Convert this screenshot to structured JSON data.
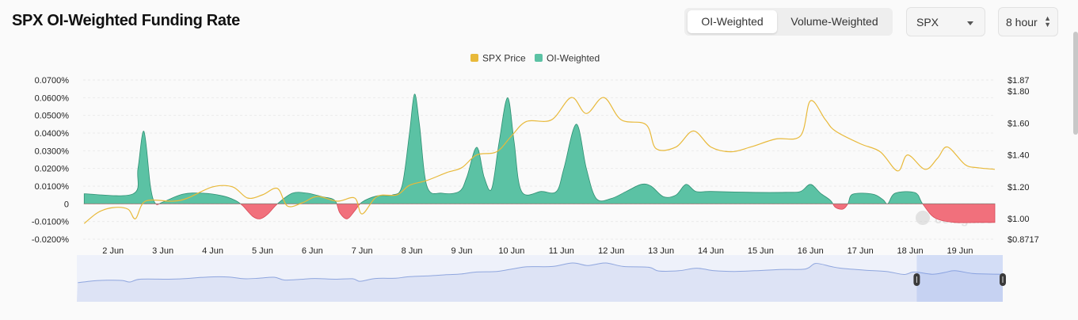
{
  "header": {
    "title": "SPX OI-Weighted Funding Rate",
    "tabs": [
      {
        "label": "OI-Weighted",
        "active": true
      },
      {
        "label": "Volume-Weighted",
        "active": false
      }
    ],
    "symbol_select": "SPX",
    "interval_select": "8 hour"
  },
  "colors": {
    "price": "#e8b93a",
    "positive": "#5bc2a4",
    "negative": "#f1707c",
    "navigator": "#8fa6de"
  },
  "chart_data": {
    "type": "area",
    "legend": [
      "SPX Price",
      "OI-Weighted"
    ],
    "x_tick_labels": [
      "2 Jun",
      "3 Jun",
      "4 Jun",
      "5 Jun",
      "6 Jun",
      "7 Jun",
      "8 Jun",
      "9 Jun",
      "10 Jun",
      "11 Jun",
      "12 Jun",
      "13 Jun",
      "14 Jun",
      "15 Jun",
      "16 Jun",
      "17 Jun",
      "18 Jun",
      "19 Jun"
    ],
    "x_range": [
      1.4,
      19.7
    ],
    "left_axis": {
      "ticks": [
        "0.0700%",
        "0.0600%",
        "0.0500%",
        "0.0400%",
        "0.0300%",
        "0.0200%",
        "0.0100%",
        "0",
        "-0.0100%",
        "-0.0200%"
      ],
      "ylim": [
        -0.02,
        0.07
      ]
    },
    "right_axis": {
      "ticks": [
        "$1.87",
        "$1.80",
        "$1.60",
        "$1.40",
        "$1.20",
        "$1.00",
        "$0.8717"
      ],
      "ylim": [
        0.8717,
        1.87
      ]
    },
    "series": [
      {
        "name": "OI-Weighted",
        "unit": "%",
        "points": [
          [
            1.42,
            0.0057
          ],
          [
            2.4,
            0.0056
          ],
          [
            2.5,
            0.02
          ],
          [
            2.62,
            0.041
          ],
          [
            2.75,
            0.01
          ],
          [
            2.85,
            0.0002
          ],
          [
            3.0,
            0.001
          ],
          [
            3.4,
            0.0055
          ],
          [
            3.8,
            0.006
          ],
          [
            4.2,
            0.0045
          ],
          [
            4.45,
            0.002
          ],
          [
            4.6,
            -0.001
          ],
          [
            4.8,
            -0.007
          ],
          [
            4.95,
            -0.0085
          ],
          [
            5.1,
            -0.006
          ],
          [
            5.3,
            0.0
          ],
          [
            5.6,
            0.006
          ],
          [
            5.9,
            0.006
          ],
          [
            6.2,
            0.004
          ],
          [
            6.45,
            0.002
          ],
          [
            6.55,
            -0.005
          ],
          [
            6.7,
            -0.0085
          ],
          [
            6.85,
            -0.004
          ],
          [
            7.0,
            0.001
          ],
          [
            7.3,
            0.0045
          ],
          [
            7.6,
            0.005
          ],
          [
            7.8,
            0.01
          ],
          [
            7.95,
            0.04
          ],
          [
            8.05,
            0.062
          ],
          [
            8.15,
            0.045
          ],
          [
            8.3,
            0.01
          ],
          [
            8.6,
            0.006
          ],
          [
            8.95,
            0.007
          ],
          [
            9.1,
            0.015
          ],
          [
            9.3,
            0.032
          ],
          [
            9.45,
            0.015
          ],
          [
            9.6,
            0.0085
          ],
          [
            9.75,
            0.035
          ],
          [
            9.92,
            0.06
          ],
          [
            10.05,
            0.035
          ],
          [
            10.2,
            0.007
          ],
          [
            10.6,
            0.007
          ],
          [
            10.9,
            0.007
          ],
          [
            11.05,
            0.02
          ],
          [
            11.3,
            0.045
          ],
          [
            11.5,
            0.02
          ],
          [
            11.7,
            0.003
          ],
          [
            12.0,
            0.003
          ],
          [
            12.3,
            0.007
          ],
          [
            12.6,
            0.011
          ],
          [
            12.8,
            0.01
          ],
          [
            13.05,
            0.004
          ],
          [
            13.3,
            0.005
          ],
          [
            13.5,
            0.011
          ],
          [
            13.7,
            0.007
          ],
          [
            14.0,
            0.007
          ],
          [
            14.8,
            0.0065
          ],
          [
            15.5,
            0.0065
          ],
          [
            15.8,
            0.007
          ],
          [
            16.0,
            0.011
          ],
          [
            16.2,
            0.006
          ],
          [
            16.4,
            0.002
          ],
          [
            16.5,
            -0.002
          ],
          [
            16.65,
            -0.003
          ],
          [
            16.75,
            0.0
          ],
          [
            16.85,
            0.0055
          ],
          [
            17.25,
            0.0055
          ],
          [
            17.45,
            0.0025
          ],
          [
            17.55,
            0.0
          ],
          [
            17.7,
            0.006
          ],
          [
            18.1,
            0.0063
          ],
          [
            18.25,
            0.0
          ],
          [
            18.5,
            -0.008
          ],
          [
            18.9,
            -0.0105
          ],
          [
            19.35,
            -0.0105
          ],
          [
            19.7,
            -0.0105
          ]
        ]
      },
      {
        "name": "SPX Price",
        "unit": "$",
        "points": [
          [
            1.42,
            0.97
          ],
          [
            1.7,
            1.04
          ],
          [
            2.0,
            1.07
          ],
          [
            2.3,
            1.06
          ],
          [
            2.45,
            1.0
          ],
          [
            2.65,
            1.11
          ],
          [
            3.2,
            1.11
          ],
          [
            3.5,
            1.13
          ],
          [
            4.0,
            1.2
          ],
          [
            4.4,
            1.2
          ],
          [
            4.7,
            1.13
          ],
          [
            5.0,
            1.15
          ],
          [
            5.3,
            1.19
          ],
          [
            5.5,
            1.08
          ],
          [
            5.8,
            1.1
          ],
          [
            6.1,
            1.14
          ],
          [
            6.5,
            1.11
          ],
          [
            6.85,
            1.13
          ],
          [
            7.0,
            1.03
          ],
          [
            7.3,
            1.14
          ],
          [
            7.7,
            1.15
          ],
          [
            7.95,
            1.21
          ],
          [
            8.3,
            1.24
          ],
          [
            8.7,
            1.29
          ],
          [
            9.0,
            1.32
          ],
          [
            9.3,
            1.4
          ],
          [
            9.7,
            1.42
          ],
          [
            10.0,
            1.52
          ],
          [
            10.3,
            1.61
          ],
          [
            10.8,
            1.62
          ],
          [
            11.2,
            1.76
          ],
          [
            11.5,
            1.66
          ],
          [
            11.85,
            1.76
          ],
          [
            12.2,
            1.62
          ],
          [
            12.7,
            1.59
          ],
          [
            12.9,
            1.44
          ],
          [
            13.3,
            1.45
          ],
          [
            13.65,
            1.55
          ],
          [
            14.0,
            1.45
          ],
          [
            14.4,
            1.42
          ],
          [
            14.8,
            1.45
          ],
          [
            15.3,
            1.5
          ],
          [
            15.8,
            1.52
          ],
          [
            16.0,
            1.74
          ],
          [
            16.3,
            1.62
          ],
          [
            16.5,
            1.55
          ],
          [
            17.0,
            1.47
          ],
          [
            17.4,
            1.42
          ],
          [
            17.75,
            1.3
          ],
          [
            17.95,
            1.4
          ],
          [
            18.3,
            1.31
          ],
          [
            18.55,
            1.38
          ],
          [
            18.75,
            1.45
          ],
          [
            19.1,
            1.34
          ],
          [
            19.35,
            1.32
          ],
          [
            19.7,
            1.31
          ]
        ]
      }
    ],
    "watermark": "coinglass"
  }
}
